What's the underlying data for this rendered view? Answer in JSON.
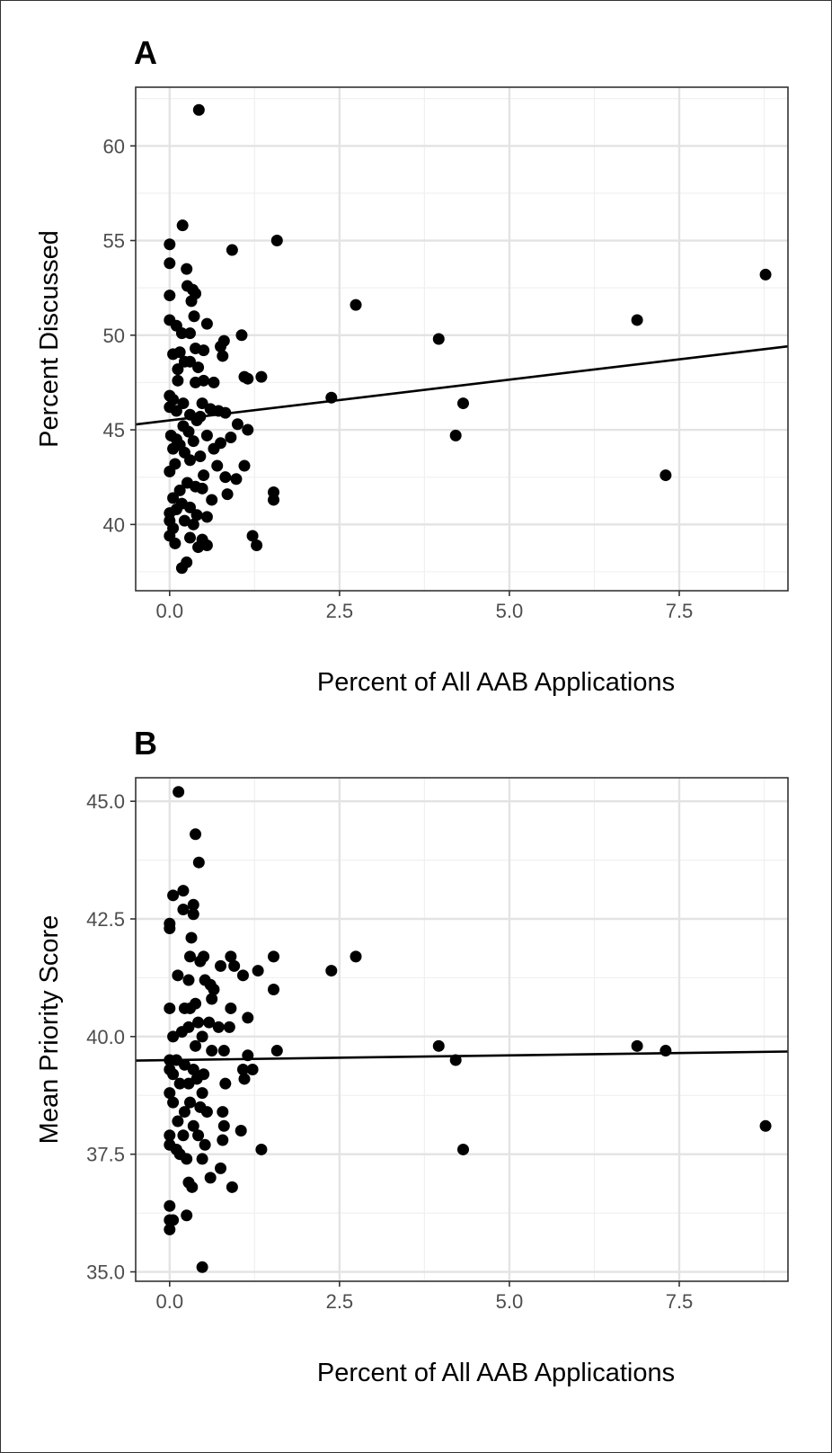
{
  "colors": {
    "point": "#000000",
    "line": "#000000",
    "grid": "#e3e3e3",
    "border": "#333333",
    "tick_text": "#4d4d4d"
  },
  "chart_data": [
    {
      "panel": "A",
      "type": "scatter",
      "xlabel": "Percent of All AAB Applications",
      "ylabel": "Percent Discussed",
      "xlim": [
        -0.5,
        9.1
      ],
      "ylim": [
        36.5,
        63.1
      ],
      "xticks": [
        0.0,
        2.5,
        5.0,
        7.5
      ],
      "xtick_labels": [
        "0.0",
        "2.5",
        "5.0",
        "7.5"
      ],
      "yticks": [
        40,
        45,
        50,
        55,
        60
      ],
      "ytick_labels": [
        "40",
        "45",
        "50",
        "55",
        "60"
      ],
      "grid": true,
      "trend_line": {
        "intercept": 45.5,
        "slope": 0.43
      },
      "points": [
        [
          0.43,
          61.9
        ],
        [
          0.19,
          55.8
        ],
        [
          1.58,
          55.0
        ],
        [
          0.0,
          54.8
        ],
        [
          0.92,
          54.5
        ],
        [
          0.0,
          53.8
        ],
        [
          0.25,
          53.5
        ],
        [
          8.77,
          53.2
        ],
        [
          0.26,
          52.6
        ],
        [
          0.34,
          52.4
        ],
        [
          0.38,
          52.2
        ],
        [
          0.0,
          52.1
        ],
        [
          0.32,
          51.8
        ],
        [
          2.74,
          51.6
        ],
        [
          0.36,
          51.0
        ],
        [
          0.0,
          50.8
        ],
        [
          6.88,
          50.8
        ],
        [
          0.55,
          50.6
        ],
        [
          0.1,
          50.5
        ],
        [
          0.18,
          50.1
        ],
        [
          1.06,
          50.0
        ],
        [
          0.3,
          50.1
        ],
        [
          3.96,
          49.8
        ],
        [
          0.8,
          49.7
        ],
        [
          0.38,
          49.3
        ],
        [
          0.5,
          49.2
        ],
        [
          0.05,
          49.0
        ],
        [
          0.75,
          49.4
        ],
        [
          0.78,
          48.9
        ],
        [
          0.15,
          49.1
        ],
        [
          0.22,
          48.6
        ],
        [
          0.42,
          48.3
        ],
        [
          0.3,
          48.6
        ],
        [
          0.12,
          48.2
        ],
        [
          1.1,
          47.8
        ],
        [
          1.35,
          47.8
        ],
        [
          0.12,
          47.6
        ],
        [
          1.15,
          47.7
        ],
        [
          0.65,
          47.5
        ],
        [
          0.38,
          47.5
        ],
        [
          0.5,
          47.6
        ],
        [
          0.0,
          46.8
        ],
        [
          2.38,
          46.7
        ],
        [
          4.32,
          46.4
        ],
        [
          0.05,
          46.6
        ],
        [
          0.2,
          46.4
        ],
        [
          0.48,
          46.4
        ],
        [
          0.0,
          46.2
        ],
        [
          0.1,
          46.0
        ],
        [
          0.3,
          45.8
        ],
        [
          0.6,
          46.1
        ],
        [
          0.82,
          45.9
        ],
        [
          0.45,
          45.7
        ],
        [
          0.4,
          45.5
        ],
        [
          1.0,
          45.3
        ],
        [
          0.2,
          45.2
        ],
        [
          0.72,
          46.0
        ],
        [
          1.15,
          45.0
        ],
        [
          0.28,
          44.9
        ],
        [
          0.02,
          44.7
        ],
        [
          4.21,
          44.7
        ],
        [
          0.55,
          44.7
        ],
        [
          0.9,
          44.6
        ],
        [
          0.1,
          44.5
        ],
        [
          0.35,
          44.4
        ],
        [
          0.75,
          44.3
        ],
        [
          0.15,
          44.2
        ],
        [
          0.05,
          44.0
        ],
        [
          0.65,
          44.0
        ],
        [
          0.22,
          43.8
        ],
        [
          0.45,
          43.6
        ],
        [
          0.3,
          43.4
        ],
        [
          0.08,
          43.2
        ],
        [
          0.7,
          43.1
        ],
        [
          1.1,
          43.1
        ],
        [
          0.0,
          42.8
        ],
        [
          0.5,
          42.6
        ],
        [
          0.82,
          42.5
        ],
        [
          7.3,
          42.6
        ],
        [
          0.98,
          42.4
        ],
        [
          0.26,
          42.2
        ],
        [
          0.38,
          42.0
        ],
        [
          0.15,
          41.8
        ],
        [
          0.85,
          41.6
        ],
        [
          1.53,
          41.7
        ],
        [
          0.48,
          41.9
        ],
        [
          0.05,
          41.4
        ],
        [
          0.62,
          41.3
        ],
        [
          1.53,
          41.3
        ],
        [
          0.18,
          41.1
        ],
        [
          0.3,
          40.9
        ],
        [
          0.1,
          40.8
        ],
        [
          0.0,
          40.6
        ],
        [
          0.4,
          40.5
        ],
        [
          0.55,
          40.4
        ],
        [
          0.0,
          40.2
        ],
        [
          0.22,
          40.2
        ],
        [
          0.35,
          40.0
        ],
        [
          0.05,
          39.8
        ],
        [
          0.0,
          39.4
        ],
        [
          0.3,
          39.3
        ],
        [
          1.22,
          39.4
        ],
        [
          0.48,
          39.2
        ],
        [
          0.08,
          39.0
        ],
        [
          1.28,
          38.9
        ],
        [
          0.55,
          38.9
        ],
        [
          0.42,
          38.8
        ],
        [
          0.25,
          38.0
        ],
        [
          0.18,
          37.7
        ]
      ]
    },
    {
      "panel": "B",
      "type": "scatter",
      "xlabel": "Percent of All AAB Applications",
      "ylabel": "Mean Priority Score",
      "xlim": [
        -0.5,
        9.1
      ],
      "ylim": [
        34.8,
        45.5
      ],
      "xticks": [
        0.0,
        2.5,
        5.0,
        7.5
      ],
      "xtick_labels": [
        "0.0",
        "2.5",
        "5.0",
        "7.5"
      ],
      "yticks": [
        35.0,
        37.5,
        40.0,
        42.5,
        45.0
      ],
      "ytick_labels": [
        "35.0",
        "37.5",
        "40.0",
        "42.5",
        "45.0"
      ],
      "grid": true,
      "trend_line": {
        "intercept": 39.5,
        "slope": 0.02
      },
      "points": [
        [
          0.13,
          45.2
        ],
        [
          0.38,
          44.3
        ],
        [
          0.43,
          43.7
        ],
        [
          0.2,
          43.1
        ],
        [
          0.05,
          43.0
        ],
        [
          0.35,
          42.8
        ],
        [
          0.2,
          42.7
        ],
        [
          0.35,
          42.6
        ],
        [
          0.0,
          42.4
        ],
        [
          0.0,
          42.3
        ],
        [
          0.32,
          42.1
        ],
        [
          2.74,
          41.7
        ],
        [
          0.9,
          41.7
        ],
        [
          1.53,
          41.7
        ],
        [
          0.3,
          41.7
        ],
        [
          0.5,
          41.7
        ],
        [
          0.75,
          41.5
        ],
        [
          0.45,
          41.6
        ],
        [
          2.38,
          41.4
        ],
        [
          0.95,
          41.5
        ],
        [
          1.3,
          41.4
        ],
        [
          0.12,
          41.3
        ],
        [
          1.08,
          41.3
        ],
        [
          0.28,
          41.2
        ],
        [
          0.52,
          41.2
        ],
        [
          0.6,
          41.1
        ],
        [
          1.53,
          41.0
        ],
        [
          0.65,
          41.0
        ],
        [
          0.0,
          40.6
        ],
        [
          0.22,
          40.6
        ],
        [
          0.3,
          40.6
        ],
        [
          0.38,
          40.7
        ],
        [
          0.62,
          40.8
        ],
        [
          0.9,
          40.6
        ],
        [
          1.15,
          40.4
        ],
        [
          0.42,
          40.3
        ],
        [
          0.58,
          40.3
        ],
        [
          0.72,
          40.2
        ],
        [
          0.88,
          40.2
        ],
        [
          0.18,
          40.1
        ],
        [
          0.28,
          40.2
        ],
        [
          0.05,
          40.0
        ],
        [
          0.48,
          40.0
        ],
        [
          3.96,
          39.8
        ],
        [
          6.88,
          39.8
        ],
        [
          7.3,
          39.7
        ],
        [
          0.38,
          39.8
        ],
        [
          1.58,
          39.7
        ],
        [
          0.62,
          39.7
        ],
        [
          0.8,
          39.7
        ],
        [
          1.15,
          39.6
        ],
        [
          4.21,
          39.5
        ],
        [
          0.0,
          39.5
        ],
        [
          0.1,
          39.5
        ],
        [
          0.22,
          39.4
        ],
        [
          0.0,
          39.3
        ],
        [
          0.35,
          39.3
        ],
        [
          1.08,
          39.3
        ],
        [
          1.22,
          39.3
        ],
        [
          0.05,
          39.2
        ],
        [
          0.5,
          39.2
        ],
        [
          1.1,
          39.1
        ],
        [
          0.15,
          39.0
        ],
        [
          0.28,
          39.0
        ],
        [
          0.4,
          39.1
        ],
        [
          0.82,
          39.0
        ],
        [
          0.0,
          38.8
        ],
        [
          0.48,
          38.8
        ],
        [
          0.05,
          38.6
        ],
        [
          0.3,
          38.6
        ],
        [
          0.45,
          38.5
        ],
        [
          0.78,
          38.4
        ],
        [
          0.22,
          38.4
        ],
        [
          0.55,
          38.4
        ],
        [
          0.12,
          38.2
        ],
        [
          0.35,
          38.1
        ],
        [
          0.8,
          38.1
        ],
        [
          1.05,
          38.0
        ],
        [
          8.77,
          38.1
        ],
        [
          0.0,
          37.9
        ],
        [
          0.2,
          37.9
        ],
        [
          0.42,
          37.9
        ],
        [
          0.78,
          37.8
        ],
        [
          0.52,
          37.7
        ],
        [
          0.0,
          37.7
        ],
        [
          0.1,
          37.6
        ],
        [
          1.35,
          37.6
        ],
        [
          4.32,
          37.6
        ],
        [
          0.15,
          37.5
        ],
        [
          0.25,
          37.4
        ],
        [
          0.48,
          37.4
        ],
        [
          0.75,
          37.2
        ],
        [
          0.6,
          37.0
        ],
        [
          0.28,
          36.9
        ],
        [
          0.33,
          36.8
        ],
        [
          0.92,
          36.8
        ],
        [
          0.0,
          36.4
        ],
        [
          0.25,
          36.2
        ],
        [
          0.0,
          36.1
        ],
        [
          0.05,
          36.1
        ],
        [
          0.0,
          35.9
        ],
        [
          0.48,
          35.1
        ]
      ]
    }
  ]
}
